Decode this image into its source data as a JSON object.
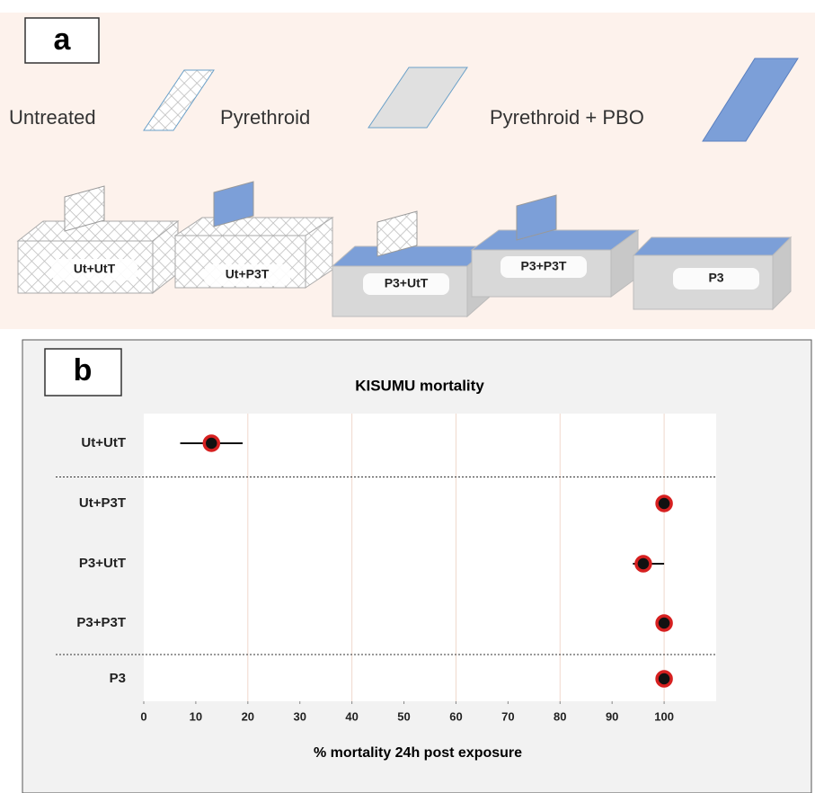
{
  "panel_a": {
    "label": "a",
    "legend": [
      "Untreated",
      "Pyrethroid",
      "Pyrethroid + PBO"
    ],
    "nets": [
      "Ut+UtT",
      "Ut+P3T",
      "P3+UtT",
      "P3+P3T",
      "P3"
    ]
  },
  "chart_data": {
    "type": "forest",
    "panel_label": "b",
    "title": "KISUMU mortality",
    "x_label": "% mortality 24h post exposure",
    "categories": [
      "Ut+UtT",
      "Ut+P3T",
      "P3+UtT",
      "P3+P3T",
      "P3"
    ],
    "values": [
      13,
      100,
      96,
      100,
      100
    ],
    "lower": [
      7,
      null,
      94,
      null,
      null
    ],
    "upper": [
      19,
      null,
      100,
      null,
      null
    ],
    "color": "#d62020",
    "xlim": [
      0,
      110
    ],
    "xticks": [
      0,
      10,
      20,
      30,
      40,
      50,
      60,
      70,
      80,
      90,
      100
    ],
    "xgrid": [
      20,
      40,
      60,
      80,
      100
    ],
    "dividers_after": [
      0,
      3
    ]
  }
}
